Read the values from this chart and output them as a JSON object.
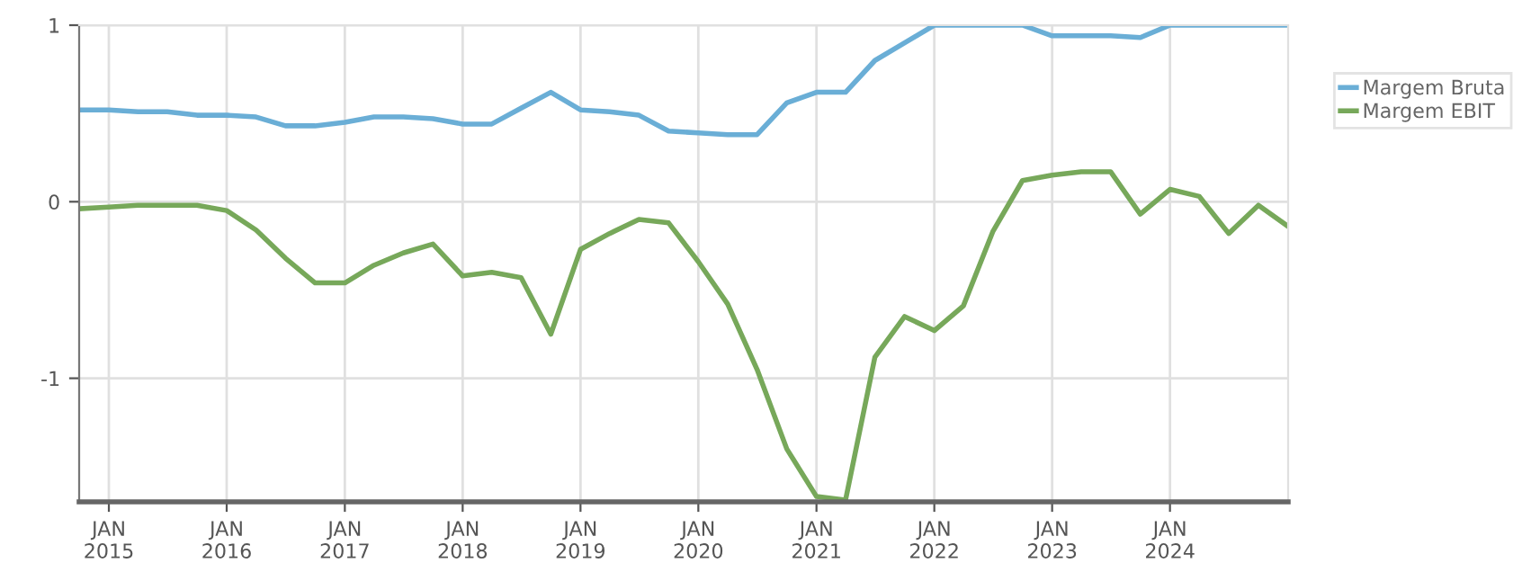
{
  "chart_data": {
    "type": "line",
    "x": [
      "2014-10",
      "2015-01",
      "2015-04",
      "2015-07",
      "2015-10",
      "2016-01",
      "2016-04",
      "2016-07",
      "2016-10",
      "2017-01",
      "2017-04",
      "2017-07",
      "2017-10",
      "2018-01",
      "2018-04",
      "2018-07",
      "2018-10",
      "2019-01",
      "2019-04",
      "2019-07",
      "2019-10",
      "2020-01",
      "2020-04",
      "2020-07",
      "2020-10",
      "2021-01",
      "2021-04",
      "2021-07",
      "2021-10",
      "2022-01",
      "2022-04",
      "2022-07",
      "2022-10",
      "2023-01",
      "2023-04",
      "2023-07",
      "2023-10",
      "2024-01",
      "2024-04",
      "2024-07",
      "2024-10",
      "2025-01"
    ],
    "series": [
      {
        "name": "Margem Bruta",
        "color": "#6aaed6",
        "values": [
          0.52,
          0.52,
          0.51,
          0.51,
          0.49,
          0.49,
          0.48,
          0.43,
          0.43,
          0.45,
          0.48,
          0.48,
          0.47,
          0.44,
          0.44,
          0.53,
          0.62,
          0.52,
          0.51,
          0.49,
          0.4,
          0.39,
          0.38,
          0.38,
          0.56,
          0.62,
          0.62,
          0.8,
          0.9,
          1.0,
          1.0,
          1.0,
          1.0,
          0.94,
          0.94,
          0.94,
          0.93,
          1.0,
          1.0,
          1.0,
          1.0,
          1.0
        ]
      },
      {
        "name": "Margem EBIT",
        "color": "#77a85a",
        "values": [
          -0.04,
          -0.03,
          -0.02,
          -0.02,
          -0.02,
          -0.05,
          -0.16,
          -0.32,
          -0.46,
          -0.46,
          -0.36,
          -0.29,
          -0.24,
          -0.42,
          -0.4,
          -0.43,
          -0.75,
          -0.27,
          -0.18,
          -0.1,
          -0.12,
          -0.34,
          -0.58,
          -0.95,
          -1.4,
          -1.67,
          -1.69,
          -0.88,
          -0.65,
          -0.73,
          -0.59,
          -0.17,
          0.12,
          0.15,
          0.17,
          0.17,
          -0.07,
          0.07,
          0.03,
          -0.18,
          -0.02,
          -0.14
        ]
      }
    ],
    "xlim": [
      "2014-10",
      "2025-01"
    ],
    "xticks": [
      {
        "value": "2015-01",
        "label": "JAN\n2015"
      },
      {
        "value": "2016-01",
        "label": "JAN\n2016"
      },
      {
        "value": "2017-01",
        "label": "JAN\n2017"
      },
      {
        "value": "2018-01",
        "label": "JAN\n2018"
      },
      {
        "value": "2019-01",
        "label": "JAN\n2019"
      },
      {
        "value": "2020-01",
        "label": "JAN\n2020"
      },
      {
        "value": "2021-01",
        "label": "JAN\n2021"
      },
      {
        "value": "2022-01",
        "label": "JAN\n2022"
      },
      {
        "value": "2023-01",
        "label": "JAN\n2023"
      },
      {
        "value": "2024-01",
        "label": "JAN\n2024"
      }
    ],
    "ylim": [
      -1.7,
      1.0
    ],
    "yticks": [
      -1,
      0,
      1
    ],
    "grid": true,
    "legend": "top right",
    "line_style": "solid",
    "marker": "none"
  }
}
